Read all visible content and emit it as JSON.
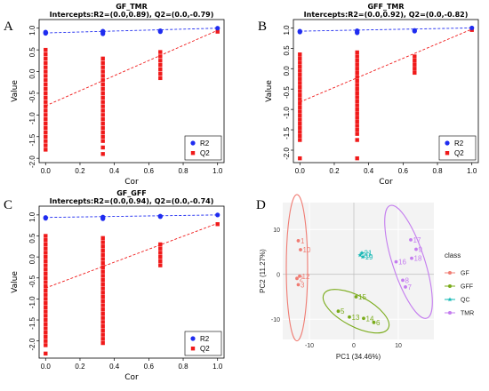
{
  "chart_data": [
    {
      "type": "scatter",
      "panel": "A",
      "title": "GF_TMR",
      "subtitle": "Intercepts:R2=(0.0,0.89), Q2=(0.0,-0.79)",
      "xlabel": "Cor",
      "ylabel": "Value",
      "xlim": [
        0.0,
        1.0
      ],
      "ylim": [
        -2.0,
        1.1
      ],
      "xticks": [
        "0.0",
        "0.2",
        "0.4",
        "0.6",
        "0.8",
        "1.0"
      ],
      "yticks": [
        "1.0",
        "0.5",
        "0.0",
        "-0.5",
        "-1.0",
        "-1.5",
        "-2.0"
      ],
      "legend": [
        "R2",
        "Q2"
      ],
      "legend_position": "bottom-right",
      "colors": {
        "R2": "#1f2cf0",
        "Q2": "#f01a1a"
      },
      "r2_points": [
        [
          0.0,
          0.88
        ],
        [
          0.0,
          0.91
        ],
        [
          0.0,
          0.9
        ],
        [
          0.333,
          0.9
        ],
        [
          0.333,
          0.93
        ],
        [
          0.333,
          0.87
        ],
        [
          0.667,
          0.94
        ],
        [
          0.667,
          0.92
        ],
        [
          1.0,
          1.0
        ]
      ],
      "q2_points": [
        [
          0.0,
          0.5
        ],
        [
          0.0,
          0.4
        ],
        [
          0.0,
          0.3
        ],
        [
          0.0,
          0.2
        ],
        [
          0.0,
          0.1
        ],
        [
          0.0,
          0.0
        ],
        [
          0.0,
          -0.1
        ],
        [
          0.0,
          -0.2
        ],
        [
          0.0,
          -0.3
        ],
        [
          0.0,
          -0.4
        ],
        [
          0.0,
          -0.5
        ],
        [
          0.0,
          -0.6
        ],
        [
          0.0,
          -0.7
        ],
        [
          0.0,
          -0.8
        ],
        [
          0.0,
          -0.9
        ],
        [
          0.0,
          -1.0
        ],
        [
          0.0,
          -1.1
        ],
        [
          0.0,
          -1.2
        ],
        [
          0.0,
          -1.3
        ],
        [
          0.0,
          -1.4
        ],
        [
          0.0,
          -1.5
        ],
        [
          0.0,
          -1.6
        ],
        [
          0.0,
          -1.7
        ],
        [
          0.0,
          -1.8
        ],
        [
          0.333,
          0.3
        ],
        [
          0.333,
          0.2
        ],
        [
          0.333,
          0.1
        ],
        [
          0.333,
          0.0
        ],
        [
          0.333,
          -0.1
        ],
        [
          0.333,
          -0.2
        ],
        [
          0.333,
          -0.3
        ],
        [
          0.333,
          -0.4
        ],
        [
          0.333,
          -0.5
        ],
        [
          0.333,
          -0.6
        ],
        [
          0.333,
          -0.7
        ],
        [
          0.333,
          -0.8
        ],
        [
          0.333,
          -0.9
        ],
        [
          0.333,
          -1.0
        ],
        [
          0.333,
          -1.1
        ],
        [
          0.333,
          -1.2
        ],
        [
          0.333,
          -1.3
        ],
        [
          0.333,
          -1.4
        ],
        [
          0.333,
          -1.5
        ],
        [
          0.333,
          -1.6
        ],
        [
          0.333,
          -1.75
        ],
        [
          0.333,
          -1.9
        ],
        [
          0.667,
          0.45
        ],
        [
          0.667,
          0.35
        ],
        [
          0.667,
          0.25
        ],
        [
          0.667,
          0.15
        ],
        [
          0.667,
          0.05
        ],
        [
          0.667,
          -0.05
        ],
        [
          0.667,
          -0.15
        ],
        [
          1.0,
          0.92
        ]
      ],
      "r2_line": [
        [
          0.0,
          0.89
        ],
        [
          1.0,
          1.0
        ]
      ],
      "q2_line": [
        [
          0.0,
          -0.79
        ],
        [
          1.0,
          0.95
        ]
      ]
    },
    {
      "type": "scatter",
      "panel": "B",
      "title": "GFF_TMR",
      "subtitle": "Intercepts:R2=(0.0,0.92), Q2=(0.0,-0.82)",
      "xlabel": "Cor",
      "ylabel": "Value",
      "xlim": [
        0.0,
        1.0
      ],
      "ylim": [
        -2.2,
        1.1
      ],
      "xticks": [
        "0.0",
        "0.2",
        "0.4",
        "0.6",
        "0.8",
        "1.0"
      ],
      "yticks": [
        "1.0",
        "0.5",
        "0.0",
        "-0.5",
        "-1.0",
        "-1.5",
        "-2.0"
      ],
      "legend": [
        "R2",
        "Q2"
      ],
      "legend_position": "bottom-right",
      "colors": {
        "R2": "#1f2cf0",
        "Q2": "#f01a1a"
      },
      "r2_points": [
        [
          0.0,
          0.92
        ],
        [
          0.0,
          0.9
        ],
        [
          0.333,
          0.93
        ],
        [
          0.333,
          0.9
        ],
        [
          0.333,
          0.88
        ],
        [
          0.667,
          0.94
        ],
        [
          0.667,
          0.92
        ],
        [
          1.0,
          1.0
        ]
      ],
      "q2_points": [
        [
          0.0,
          0.35
        ],
        [
          0.0,
          0.25
        ],
        [
          0.0,
          0.15
        ],
        [
          0.0,
          0.05
        ],
        [
          0.0,
          -0.05
        ],
        [
          0.0,
          -0.15
        ],
        [
          0.0,
          -0.25
        ],
        [
          0.0,
          -0.35
        ],
        [
          0.0,
          -0.45
        ],
        [
          0.0,
          -0.55
        ],
        [
          0.0,
          -0.65
        ],
        [
          0.0,
          -0.75
        ],
        [
          0.0,
          -0.85
        ],
        [
          0.0,
          -0.95
        ],
        [
          0.0,
          -1.05
        ],
        [
          0.0,
          -1.15
        ],
        [
          0.0,
          -1.25
        ],
        [
          0.0,
          -1.35
        ],
        [
          0.0,
          -1.45
        ],
        [
          0.0,
          -1.55
        ],
        [
          0.0,
          -1.65
        ],
        [
          0.0,
          -1.75
        ],
        [
          0.0,
          -2.2
        ],
        [
          0.333,
          0.4
        ],
        [
          0.333,
          0.3
        ],
        [
          0.333,
          0.2
        ],
        [
          0.333,
          0.1
        ],
        [
          0.333,
          0.0
        ],
        [
          0.333,
          -0.1
        ],
        [
          0.333,
          -0.2
        ],
        [
          0.333,
          -0.3
        ],
        [
          0.333,
          -0.4
        ],
        [
          0.333,
          -0.5
        ],
        [
          0.333,
          -0.6
        ],
        [
          0.333,
          -0.7
        ],
        [
          0.333,
          -0.8
        ],
        [
          0.333,
          -0.9
        ],
        [
          0.333,
          -1.0
        ],
        [
          0.333,
          -1.1
        ],
        [
          0.333,
          -1.2
        ],
        [
          0.333,
          -1.3
        ],
        [
          0.333,
          -1.4
        ],
        [
          0.333,
          -1.5
        ],
        [
          0.333,
          -1.6
        ],
        [
          0.333,
          -1.75
        ],
        [
          0.333,
          -2.2
        ],
        [
          0.667,
          0.3
        ],
        [
          0.667,
          0.2
        ],
        [
          0.667,
          0.1
        ],
        [
          0.667,
          0.0
        ],
        [
          0.667,
          -0.1
        ],
        [
          1.0,
          0.95
        ]
      ],
      "r2_line": [
        [
          0.0,
          0.92
        ],
        [
          1.0,
          1.0
        ]
      ],
      "q2_line": [
        [
          0.0,
          -0.82
        ],
        [
          1.0,
          0.97
        ]
      ]
    },
    {
      "type": "scatter",
      "panel": "C",
      "title": "GF_GFF",
      "subtitle": "Intercepts:R2=(0.0,0.94), Q2=(0.0,-0.74)",
      "xlabel": "Cor",
      "ylabel": "Value",
      "xlim": [
        0.0,
        1.0
      ],
      "ylim": [
        -2.3,
        1.1
      ],
      "xticks": [
        "0.0",
        "0.2",
        "0.4",
        "0.6",
        "0.8",
        "1.0"
      ],
      "yticks": [
        "1.0",
        "0.5",
        "0.0",
        "-0.5",
        "-1.0",
        "-1.5",
        "-2.0"
      ],
      "legend": [
        "R2",
        "Q2"
      ],
      "legend_position": "bottom-right",
      "colors": {
        "R2": "#1f2cf0",
        "Q2": "#f01a1a"
      },
      "r2_points": [
        [
          0.0,
          0.94
        ],
        [
          0.0,
          0.92
        ],
        [
          0.333,
          0.95
        ],
        [
          0.333,
          0.93
        ],
        [
          0.333,
          0.91
        ],
        [
          0.667,
          0.96
        ],
        [
          0.667,
          0.97
        ],
        [
          1.0,
          1.0
        ]
      ],
      "q2_points": [
        [
          0.0,
          0.5
        ],
        [
          0.0,
          0.4
        ],
        [
          0.0,
          0.3
        ],
        [
          0.0,
          0.2
        ],
        [
          0.0,
          0.1
        ],
        [
          0.0,
          0.0
        ],
        [
          0.0,
          -0.1
        ],
        [
          0.0,
          -0.2
        ],
        [
          0.0,
          -0.3
        ],
        [
          0.0,
          -0.4
        ],
        [
          0.0,
          -0.5
        ],
        [
          0.0,
          -0.6
        ],
        [
          0.0,
          -0.7
        ],
        [
          0.0,
          -0.8
        ],
        [
          0.0,
          -0.9
        ],
        [
          0.0,
          -1.0
        ],
        [
          0.0,
          -1.1
        ],
        [
          0.0,
          -1.2
        ],
        [
          0.0,
          -1.3
        ],
        [
          0.0,
          -1.4
        ],
        [
          0.0,
          -1.5
        ],
        [
          0.0,
          -1.6
        ],
        [
          0.0,
          -1.7
        ],
        [
          0.0,
          -1.8
        ],
        [
          0.0,
          -1.9
        ],
        [
          0.0,
          -2.0
        ],
        [
          0.0,
          -2.1
        ],
        [
          0.0,
          -2.3
        ],
        [
          0.333,
          0.45
        ],
        [
          0.333,
          0.35
        ],
        [
          0.333,
          0.25
        ],
        [
          0.333,
          0.15
        ],
        [
          0.333,
          0.05
        ],
        [
          0.333,
          -0.05
        ],
        [
          0.333,
          -0.15
        ],
        [
          0.333,
          -0.25
        ],
        [
          0.333,
          -0.35
        ],
        [
          0.333,
          -0.45
        ],
        [
          0.333,
          -0.55
        ],
        [
          0.333,
          -0.65
        ],
        [
          0.333,
          -0.75
        ],
        [
          0.333,
          -0.85
        ],
        [
          0.333,
          -0.95
        ],
        [
          0.333,
          -1.05
        ],
        [
          0.333,
          -1.15
        ],
        [
          0.333,
          -1.25
        ],
        [
          0.333,
          -1.35
        ],
        [
          0.333,
          -1.45
        ],
        [
          0.333,
          -1.55
        ],
        [
          0.333,
          -1.65
        ],
        [
          0.333,
          -1.75
        ],
        [
          0.333,
          -1.85
        ],
        [
          0.333,
          -1.95
        ],
        [
          0.333,
          -2.05
        ],
        [
          0.667,
          0.3
        ],
        [
          0.667,
          0.2
        ],
        [
          0.667,
          0.1
        ],
        [
          0.667,
          0.0
        ],
        [
          0.667,
          -0.1
        ],
        [
          0.667,
          -0.2
        ],
        [
          1.0,
          0.78
        ]
      ],
      "r2_line": [
        [
          0.0,
          0.94
        ],
        [
          1.0,
          1.0
        ]
      ],
      "q2_line": [
        [
          0.0,
          -0.74
        ],
        [
          1.0,
          0.8
        ]
      ]
    },
    {
      "type": "scatter",
      "panel": "D",
      "xlabel": "PC1 (34.46%)",
      "ylabel": "PC2 (11.27%)",
      "xlim": [
        -16,
        18
      ],
      "ylim": [
        -14.5,
        16
      ],
      "xticks": [
        -10,
        0,
        10
      ],
      "yticks": [
        10,
        0,
        -10
      ],
      "legend_title": "class",
      "legend_position": "right",
      "grid": true,
      "background": "#f3f3f3",
      "classes": [
        {
          "name": "GF",
          "color": "#f07c73",
          "points": [
            {
              "label": "1",
              "x": -12.5,
              "y": 7.5
            },
            {
              "label": "10",
              "x": -12.0,
              "y": 5.5
            },
            {
              "label": "12",
              "x": -12.2,
              "y": -0.4
            },
            {
              "label": "2",
              "x": -12.8,
              "y": -0.9
            },
            {
              "label": "3",
              "x": -12.5,
              "y": -2.3
            }
          ],
          "ellipse": {
            "cx": -12.8,
            "cy": 1.5,
            "rx": 2.4,
            "ry": 16.3,
            "angle": 0
          }
        },
        {
          "name": "GFF",
          "color": "#7aab1a",
          "points": [
            {
              "label": "15",
              "x": 0.5,
              "y": -5.0
            },
            {
              "label": "5",
              "x": -3.5,
              "y": -8.2
            },
            {
              "label": "13",
              "x": -1.0,
              "y": -9.5
            },
            {
              "label": "14",
              "x": 2.2,
              "y": -9.8
            },
            {
              "label": "6",
              "x": 4.5,
              "y": -10.7
            }
          ],
          "ellipse": {
            "cx": 0.5,
            "cy": -8.2,
            "rx": 8.2,
            "ry": 3.4,
            "angle": 28
          }
        },
        {
          "name": "QC",
          "color": "#13b8b5",
          "points": [
            {
              "label": "21",
              "x": 1.8,
              "y": 4.8
            },
            {
              "label": "20",
              "x": 1.4,
              "y": 4.3
            },
            {
              "label": "19",
              "x": 2.0,
              "y": 3.9
            }
          ],
          "ellipse": null
        },
        {
          "name": "TMR",
          "color": "#c47cef",
          "points": [
            {
              "label": "17",
              "x": 12.8,
              "y": 7.7
            },
            {
              "label": "9",
              "x": 14.0,
              "y": 5.6
            },
            {
              "label": "18",
              "x": 13.0,
              "y": 3.6
            },
            {
              "label": "16",
              "x": 9.5,
              "y": 2.8
            },
            {
              "label": "8",
              "x": 11.0,
              "y": -1.3
            },
            {
              "label": "7",
              "x": 11.6,
              "y": -2.8
            }
          ],
          "ellipse": {
            "cx": 12.3,
            "cy": 2.8,
            "rx": 3.6,
            "ry": 13.2,
            "angle": -18
          }
        }
      ]
    }
  ]
}
